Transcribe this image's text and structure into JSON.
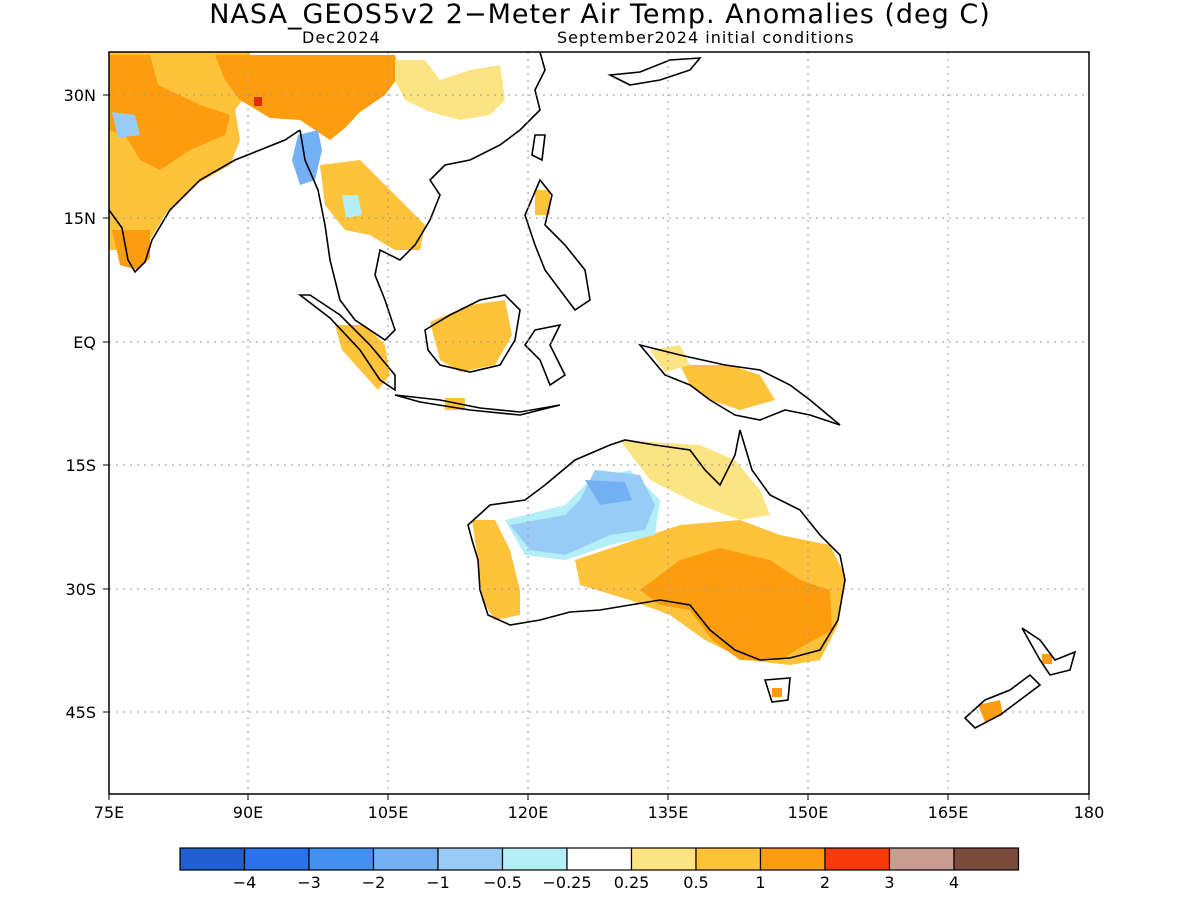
{
  "title": "NASA_GEOS5v2 2−Meter Air Temp. Anomalies (deg C)",
  "subtitle_left": "Dec2024",
  "subtitle_right": "September2024 initial conditions",
  "map": {
    "lon_labels": [
      "75E",
      "90E",
      "105E",
      "120E",
      "135E",
      "150E",
      "165E",
      "180"
    ],
    "lat_labels": [
      "30N",
      "15N",
      "EQ",
      "15S",
      "30S",
      "45S"
    ]
  },
  "colorbar": {
    "labels": [
      "−4",
      "−3",
      "−2",
      "−1",
      "−0.5",
      "−0.25",
      "0.25",
      "0.5",
      "1",
      "2",
      "3",
      "4"
    ],
    "colors": [
      "#1f5fcf",
      "#2a72e8",
      "#4290ef",
      "#74b0f4",
      "#98ccf7",
      "#b4eef6",
      "#ffffff",
      "#fde483",
      "#fec23b",
      "#fd9d0e",
      "#fb3a0b",
      "#c99c90",
      "#7b4c3e"
    ]
  },
  "anomaly_colors": {
    "warm_light": "#fde483",
    "warm_mid": "#fec23b",
    "warm_strong": "#fd9d0e",
    "hot": "#e02b10",
    "cool_light": "#b4eef6",
    "cool_mid": "#98ccf7",
    "cool_strong": "#74b0f4"
  }
}
